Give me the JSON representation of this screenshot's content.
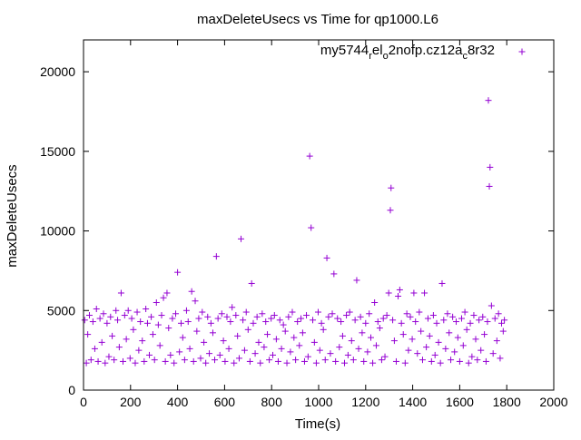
{
  "chart_data": {
    "type": "scatter",
    "title": "maxDeleteUsecs vs Time for qp1000.L6",
    "xlabel": "Time(s)",
    "ylabel": "maxDeleteUsecs",
    "xlim": [
      0,
      2000
    ],
    "ylim": [
      0,
      22000
    ],
    "x_ticks": [
      "0",
      "200",
      "400",
      "600",
      "800",
      "1000",
      "1200",
      "1400",
      "1600",
      "1800",
      "2000"
    ],
    "y_ticks": [
      "0",
      "5000",
      "10000",
      "15000",
      "20000"
    ],
    "legend_position": "top-right",
    "marker": "plus",
    "series": [
      {
        "name": "my5744_rel_o2nofp.cz12a_c8r32",
        "legend_text": {
          "base1": "my5744",
          "sub1": "r",
          "base2": "el",
          "sub2": "o",
          "base3": "2nofp.cz12a",
          "sub3": "c",
          "base4": "8r32"
        },
        "color": "#9400d3",
        "points": [
          [
            5,
            4400
          ],
          [
            12,
            1700
          ],
          [
            18,
            3500
          ],
          [
            25,
            4700
          ],
          [
            32,
            1900
          ],
          [
            40,
            4300
          ],
          [
            48,
            2600
          ],
          [
            55,
            5100
          ],
          [
            62,
            1800
          ],
          [
            70,
            4500
          ],
          [
            78,
            3000
          ],
          [
            85,
            4800
          ],
          [
            92,
            1700
          ],
          [
            100,
            4200
          ],
          [
            108,
            2100
          ],
          [
            115,
            4600
          ],
          [
            122,
            3400
          ],
          [
            130,
            1900
          ],
          [
            138,
            5000
          ],
          [
            145,
            4400
          ],
          [
            152,
            2700
          ],
          [
            160,
            6100
          ],
          [
            168,
            1800
          ],
          [
            175,
            4700
          ],
          [
            182,
            3200
          ],
          [
            190,
            5000
          ],
          [
            198,
            2000
          ],
          [
            205,
            4500
          ],
          [
            212,
            3800
          ],
          [
            220,
            1700
          ],
          [
            228,
            4900
          ],
          [
            235,
            2500
          ],
          [
            242,
            4300
          ],
          [
            250,
            3100
          ],
          [
            258,
            1800
          ],
          [
            265,
            5100
          ],
          [
            272,
            4200
          ],
          [
            280,
            2200
          ],
          [
            288,
            4600
          ],
          [
            295,
            3500
          ],
          [
            302,
            1900
          ],
          [
            310,
            5500
          ],
          [
            318,
            4100
          ],
          [
            325,
            2800
          ],
          [
            332,
            4700
          ],
          [
            340,
            5800
          ],
          [
            348,
            1800
          ],
          [
            355,
            6100
          ],
          [
            362,
            3900
          ],
          [
            370,
            2200
          ],
          [
            378,
            4500
          ],
          [
            385,
            1700
          ],
          [
            392,
            4800
          ],
          [
            400,
            7400
          ],
          [
            408,
            2400
          ],
          [
            415,
            4200
          ],
          [
            422,
            3300
          ],
          [
            430,
            1900
          ],
          [
            438,
            5000
          ],
          [
            445,
            4300
          ],
          [
            452,
            2600
          ],
          [
            460,
            6200
          ],
          [
            468,
            1800
          ],
          [
            475,
            5600
          ],
          [
            482,
            3700
          ],
          [
            490,
            4500
          ],
          [
            498,
            2000
          ],
          [
            505,
            4900
          ],
          [
            512,
            3000
          ],
          [
            520,
            1700
          ],
          [
            528,
            4600
          ],
          [
            535,
            2300
          ],
          [
            542,
            4200
          ],
          [
            550,
            3600
          ],
          [
            558,
            1900
          ],
          [
            565,
            8400
          ],
          [
            572,
            4500
          ],
          [
            580,
            2200
          ],
          [
            588,
            4800
          ],
          [
            595,
            3100
          ],
          [
            602,
            1800
          ],
          [
            610,
            4600
          ],
          [
            618,
            2600
          ],
          [
            625,
            4300
          ],
          [
            632,
            5200
          ],
          [
            640,
            1700
          ],
          [
            648,
            4700
          ],
          [
            655,
            3400
          ],
          [
            662,
            2000
          ],
          [
            670,
            9500
          ],
          [
            678,
            4400
          ],
          [
            685,
            2500
          ],
          [
            692,
            4900
          ],
          [
            700,
            3800
          ],
          [
            708,
            1800
          ],
          [
            715,
            6700
          ],
          [
            722,
            4200
          ],
          [
            730,
            2300
          ],
          [
            738,
            4600
          ],
          [
            745,
            3000
          ],
          [
            752,
            1700
          ],
          [
            760,
            4800
          ],
          [
            768,
            2700
          ],
          [
            775,
            4300
          ],
          [
            782,
            3500
          ],
          [
            790,
            1900
          ],
          [
            798,
            4500
          ],
          [
            805,
            2200
          ],
          [
            812,
            4700
          ],
          [
            820,
            3200
          ],
          [
            828,
            1800
          ],
          [
            835,
            4400
          ],
          [
            842,
            2600
          ],
          [
            850,
            4100
          ],
          [
            858,
            3700
          ],
          [
            865,
            1700
          ],
          [
            872,
            4600
          ],
          [
            880,
            2400
          ],
          [
            888,
            4900
          ],
          [
            895,
            3300
          ],
          [
            902,
            1900
          ],
          [
            910,
            4300
          ],
          [
            918,
            2800
          ],
          [
            925,
            4500
          ],
          [
            932,
            3600
          ],
          [
            940,
            1800
          ],
          [
            948,
            4700
          ],
          [
            955,
            2100
          ],
          [
            962,
            14700
          ],
          [
            968,
            10200
          ],
          [
            975,
            4400
          ],
          [
            982,
            3000
          ],
          [
            990,
            1700
          ],
          [
            998,
            4900
          ],
          [
            1005,
            2500
          ],
          [
            1012,
            4200
          ],
          [
            1020,
            3800
          ],
          [
            1028,
            1900
          ],
          [
            1035,
            8300
          ],
          [
            1042,
            4600
          ],
          [
            1050,
            2300
          ],
          [
            1058,
            4800
          ],
          [
            1065,
            7300
          ],
          [
            1072,
            1800
          ],
          [
            1080,
            4500
          ],
          [
            1088,
            2700
          ],
          [
            1095,
            4300
          ],
          [
            1102,
            3400
          ],
          [
            1110,
            1700
          ],
          [
            1118,
            4700
          ],
          [
            1125,
            2200
          ],
          [
            1132,
            4900
          ],
          [
            1140,
            3100
          ],
          [
            1148,
            1900
          ],
          [
            1155,
            4400
          ],
          [
            1162,
            6900
          ],
          [
            1170,
            2600
          ],
          [
            1178,
            4600
          ],
          [
            1185,
            3600
          ],
          [
            1192,
            1800
          ],
          [
            1200,
            4200
          ],
          [
            1208,
            2400
          ],
          [
            1215,
            4800
          ],
          [
            1222,
            3300
          ],
          [
            1230,
            1700
          ],
          [
            1238,
            5500
          ],
          [
            1245,
            2800
          ],
          [
            1252,
            4300
          ],
          [
            1260,
            3900
          ],
          [
            1268,
            1900
          ],
          [
            1275,
            4500
          ],
          [
            1282,
            2100
          ],
          [
            1290,
            4700
          ],
          [
            1298,
            6100
          ],
          [
            1305,
            11300
          ],
          [
            1308,
            12700
          ],
          [
            1315,
            4400
          ],
          [
            1322,
            3100
          ],
          [
            1330,
            1800
          ],
          [
            1338,
            5900
          ],
          [
            1345,
            6300
          ],
          [
            1352,
            4200
          ],
          [
            1360,
            3500
          ],
          [
            1368,
            1700
          ],
          [
            1375,
            4800
          ],
          [
            1382,
            2500
          ],
          [
            1390,
            4600
          ],
          [
            1398,
            3200
          ],
          [
            1405,
            6100
          ],
          [
            1412,
            4300
          ],
          [
            1420,
            2300
          ],
          [
            1428,
            4900
          ],
          [
            1435,
            3700
          ],
          [
            1442,
            1900
          ],
          [
            1450,
            6100
          ],
          [
            1458,
            2700
          ],
          [
            1465,
            4500
          ],
          [
            1472,
            3400
          ],
          [
            1480,
            1800
          ],
          [
            1488,
            4700
          ],
          [
            1495,
            2200
          ],
          [
            1502,
            4200
          ],
          [
            1510,
            3000
          ],
          [
            1518,
            1700
          ],
          [
            1525,
            6700
          ],
          [
            1532,
            4400
          ],
          [
            1540,
            2600
          ],
          [
            1548,
            4800
          ],
          [
            1555,
            3600
          ],
          [
            1562,
            1900
          ],
          [
            1570,
            4600
          ],
          [
            1578,
            2400
          ],
          [
            1585,
            4300
          ],
          [
            1592,
            3300
          ],
          [
            1600,
            1800
          ],
          [
            1608,
            4500
          ],
          [
            1615,
            2800
          ],
          [
            1622,
            4900
          ],
          [
            1630,
            3800
          ],
          [
            1638,
            1700
          ],
          [
            1645,
            4200
          ],
          [
            1652,
            2100
          ],
          [
            1660,
            4700
          ],
          [
            1668,
            3200
          ],
          [
            1675,
            1900
          ],
          [
            1682,
            4400
          ],
          [
            1690,
            2500
          ],
          [
            1698,
            4600
          ],
          [
            1705,
            3500
          ],
          [
            1712,
            1800
          ],
          [
            1718,
            4300
          ],
          [
            1722,
            18200
          ],
          [
            1726,
            12800
          ],
          [
            1729,
            14000
          ],
          [
            1735,
            5300
          ],
          [
            1742,
            2300
          ],
          [
            1750,
            4500
          ],
          [
            1758,
            3100
          ],
          [
            1765,
            4800
          ],
          [
            1772,
            2000
          ],
          [
            1778,
            4200
          ],
          [
            1785,
            3700
          ],
          [
            1790,
            4400
          ]
        ]
      }
    ]
  }
}
